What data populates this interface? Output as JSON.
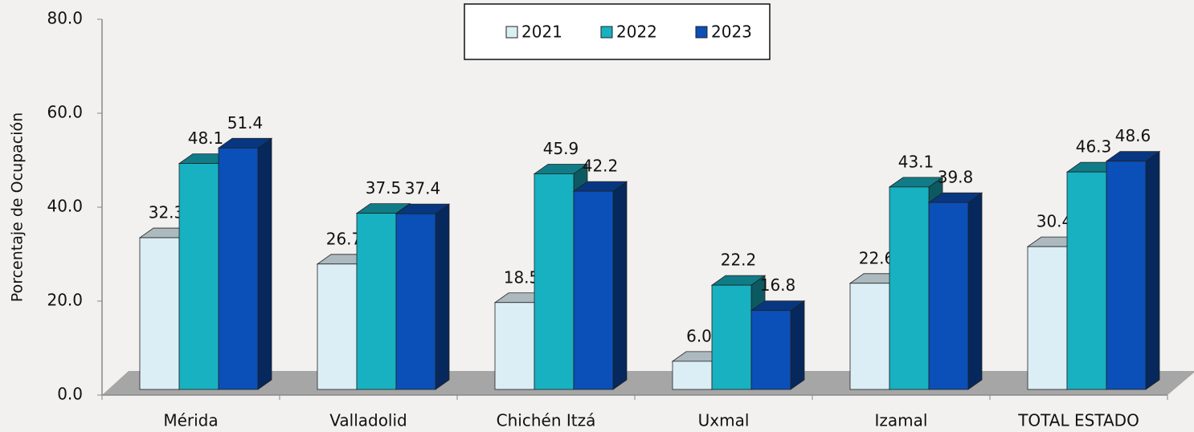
{
  "chart_data": {
    "type": "bar3d",
    "y_label": "Porcentaje de Ocupación",
    "categories": [
      "Mérida",
      "Valladolid",
      "Chichén Itzá",
      "Uxmal",
      "Izamal",
      "TOTAL ESTADO"
    ],
    "series": [
      {
        "name": "2021",
        "color": "#dceef5",
        "values": [
          32.3,
          26.7,
          18.5,
          6.0,
          22.6,
          30.4
        ],
        "value_labels": [
          "32.3",
          "26.7",
          "18.5",
          "6.0",
          "22.6",
          "30.4"
        ]
      },
      {
        "name": "2022",
        "color": "#17b1c1",
        "values": [
          48.1,
          37.5,
          45.9,
          22.2,
          43.1,
          46.3
        ],
        "value_labels": [
          "48.1",
          "37.5",
          "45.9",
          "22.2",
          "43.1",
          "46.3"
        ]
      },
      {
        "name": "2023",
        "color": "#0b4fb8",
        "values": [
          51.4,
          37.4,
          42.2,
          16.8,
          39.8,
          48.6
        ],
        "value_labels": [
          "51.4",
          "37.4",
          "42.2",
          "16.8",
          "39.8",
          "48.6"
        ]
      }
    ],
    "ylim": [
      0,
      80
    ],
    "yticks": [
      {
        "value": 0,
        "label": "0.0"
      },
      {
        "value": 20,
        "label": "20.0"
      },
      {
        "value": 40,
        "label": "40.0"
      },
      {
        "value": 60,
        "label": "60.0"
      },
      {
        "value": 80,
        "label": "80.0"
      }
    ],
    "legend": "top"
  }
}
